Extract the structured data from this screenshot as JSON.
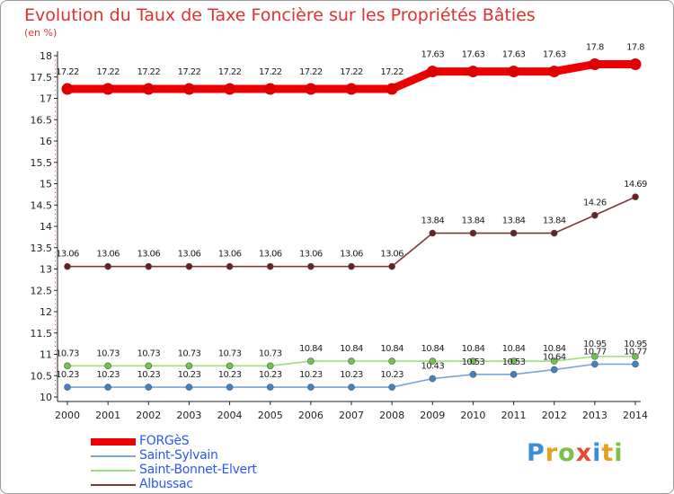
{
  "header": {
    "title": "Evolution du Taux de Taxe Foncière sur les Propriétés Bâties",
    "unit": "(en %)"
  },
  "logo": {
    "letters": [
      "P",
      "r",
      "o",
      "x",
      "i",
      "t",
      "i"
    ],
    "colors": [
      "#3a8fd8",
      "#e8a020",
      "#7cc04a",
      "#e84a30",
      "#3a8fd8",
      "#e8a020",
      "#7cc04a"
    ]
  },
  "chart_data": {
    "type": "line",
    "title": "Evolution du Taux de Taxe Foncière sur les Propriétés Bâties",
    "ylabel": "(en %)",
    "xlabel": "",
    "x": [
      "2000",
      "2001",
      "2002",
      "2003",
      "2004",
      "2005",
      "2006",
      "2007",
      "2008",
      "2009",
      "2010",
      "2011",
      "2012",
      "2013",
      "2014"
    ],
    "ylim": [
      10,
      18
    ],
    "yticks": [
      "10",
      "10.5",
      "11",
      "11.5",
      "12",
      "12.5",
      "13",
      "13.5",
      "14",
      "14.5",
      "15",
      "15.5",
      "16",
      "16.5",
      "17",
      "17.5",
      "18"
    ],
    "grid": false,
    "legend_position": "bottom-left",
    "series": [
      {
        "name": "FORGèS",
        "color": "#ee0000",
        "marker_color": "#dd0000",
        "values": [
          17.22,
          17.22,
          17.22,
          17.22,
          17.22,
          17.22,
          17.22,
          17.22,
          17.22,
          17.63,
          17.63,
          17.63,
          17.63,
          17.8,
          17.8
        ],
        "labels": [
          "17.22",
          "17.22",
          "17.22",
          "17.22",
          "17.22",
          "17.22",
          "17.22",
          "17.22",
          "17.22",
          "17.63",
          "17.63",
          "17.63",
          "17.63",
          "17.8",
          "17.8"
        ]
      },
      {
        "name": "Saint-Sylvain",
        "color": "#7aa6d8",
        "marker_color": "#3f82c8",
        "values": [
          10.23,
          10.23,
          10.23,
          10.23,
          10.23,
          10.23,
          10.23,
          10.23,
          10.23,
          10.43,
          10.53,
          10.53,
          10.64,
          10.77,
          10.77
        ],
        "labels": [
          "10.23",
          "10.23",
          "10.23",
          "10.23",
          "10.23",
          "10.23",
          "10.23",
          "10.23",
          "10.23",
          "10.43",
          "10.53",
          "10.53",
          "10.64",
          "10.77",
          "10.77"
        ]
      },
      {
        "name": "Saint-Bonnet-Elvert",
        "color": "#9ee07a",
        "marker_color": "#6cc64a",
        "values": [
          10.73,
          10.73,
          10.73,
          10.73,
          10.73,
          10.73,
          10.84,
          10.84,
          10.84,
          10.84,
          10.84,
          10.84,
          10.84,
          10.95,
          10.95
        ],
        "labels": [
          "10.73",
          "10.73",
          "10.73",
          "10.73",
          "10.73",
          "10.73",
          "10.84",
          "10.84",
          "10.84",
          "10.84",
          "10.84",
          "10.84",
          "10.84",
          "10.95",
          "10.95"
        ]
      },
      {
        "name": "Albussac",
        "color": "#7a3a3a",
        "marker_color": "#6a2020",
        "values": [
          13.06,
          13.06,
          13.06,
          13.06,
          13.06,
          13.06,
          13.06,
          13.06,
          13.06,
          13.84,
          13.84,
          13.84,
          13.84,
          14.26,
          14.69
        ],
        "labels": [
          "13.06",
          "13.06",
          "13.06",
          "13.06",
          "13.06",
          "13.06",
          "13.06",
          "13.06",
          "13.06",
          "13.84",
          "13.84",
          "13.84",
          "13.84",
          "14.26",
          "14.69"
        ]
      }
    ]
  }
}
